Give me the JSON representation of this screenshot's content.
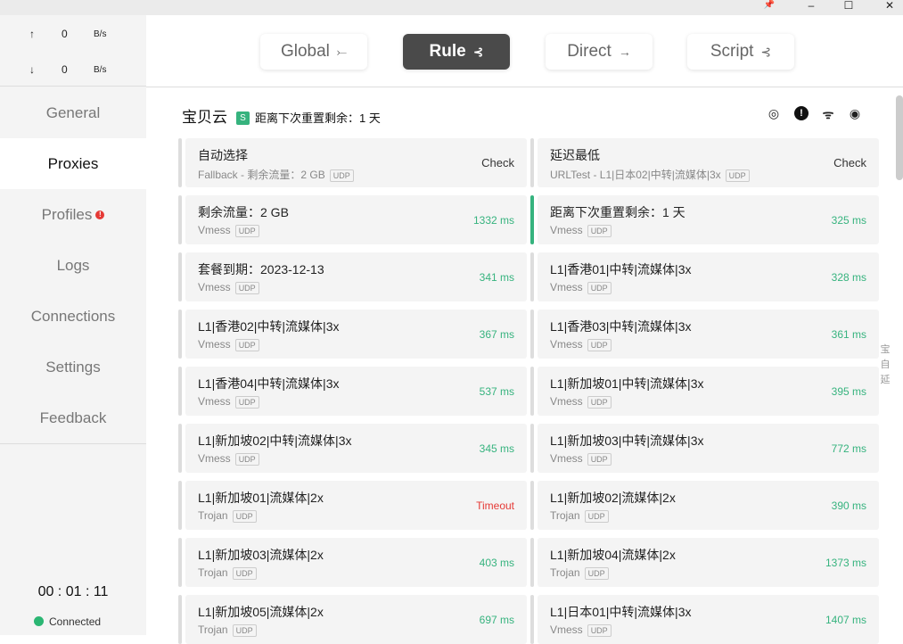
{
  "window": {
    "pin": "📌",
    "minimize": "–",
    "maximize": "☐",
    "close": "✕"
  },
  "traffic": {
    "up_arrow": "↑",
    "up_value": "0",
    "up_unit": "B/s",
    "down_arrow": "↓",
    "down_value": "0",
    "down_unit": "B/s"
  },
  "nav": [
    {
      "label": "General"
    },
    {
      "label": "Proxies",
      "active": true
    },
    {
      "label": "Profiles",
      "alert": "!"
    },
    {
      "label": "Logs"
    },
    {
      "label": "Connections"
    },
    {
      "label": "Settings"
    },
    {
      "label": "Feedback"
    }
  ],
  "timer": "00 : 01 : 11",
  "status": "Connected",
  "colors": {
    "accent": "#36b37e",
    "error": "#e53935",
    "selected_mode": "#4a4a4a"
  },
  "modes": [
    {
      "label": "Global",
      "icon": "⤚"
    },
    {
      "label": "Rule",
      "icon": "⊰",
      "selected": true
    },
    {
      "label": "Direct",
      "icon": "→"
    },
    {
      "label": "Script",
      "icon": "⊰"
    }
  ],
  "group": {
    "name": "宝贝云",
    "badge": "S",
    "subtitle": "距离下次重置剩余：1 天",
    "icons": [
      "locate-icon",
      "alert-icon",
      "latency-test-icon",
      "eye-icon"
    ]
  },
  "proxies": [
    {
      "name": "自动选择",
      "type": "Fallback - 剩余流量：2 GB",
      "udp": "UDP",
      "latency": "Check",
      "kind": "check"
    },
    {
      "name": "延迟最低",
      "type": "URLTest - L1|日本02|中转|流媒体|3x",
      "udp": "UDP",
      "latency": "Check",
      "kind": "check"
    },
    {
      "name": "剩余流量：2 GB",
      "type": "Vmess",
      "udp": "UDP",
      "latency": "1332 ms"
    },
    {
      "name": "距离下次重置剩余：1 天",
      "type": "Vmess",
      "udp": "UDP",
      "latency": "325 ms",
      "selected": true
    },
    {
      "name": "套餐到期：2023-12-13",
      "type": "Vmess",
      "udp": "UDP",
      "latency": "341 ms"
    },
    {
      "name": "L1|香港01|中转|流媒体|3x",
      "type": "Vmess",
      "udp": "UDP",
      "latency": "328 ms"
    },
    {
      "name": "L1|香港02|中转|流媒体|3x",
      "type": "Vmess",
      "udp": "UDP",
      "latency": "367 ms"
    },
    {
      "name": "L1|香港03|中转|流媒体|3x",
      "type": "Vmess",
      "udp": "UDP",
      "latency": "361 ms"
    },
    {
      "name": "L1|香港04|中转|流媒体|3x",
      "type": "Vmess",
      "udp": "UDP",
      "latency": "537 ms"
    },
    {
      "name": "L1|新加坡01|中转|流媒体|3x",
      "type": "Vmess",
      "udp": "UDP",
      "latency": "395 ms"
    },
    {
      "name": "L1|新加坡02|中转|流媒体|3x",
      "type": "Vmess",
      "udp": "UDP",
      "latency": "345 ms"
    },
    {
      "name": "L1|新加坡03|中转|流媒体|3x",
      "type": "Vmess",
      "udp": "UDP",
      "latency": "772 ms"
    },
    {
      "name": "L1|新加坡01|流媒体|2x",
      "type": "Trojan",
      "udp": "UDP",
      "latency": "Timeout",
      "kind": "timeout"
    },
    {
      "name": "L1|新加坡02|流媒体|2x",
      "type": "Trojan",
      "udp": "UDP",
      "latency": "390 ms"
    },
    {
      "name": "L1|新加坡03|流媒体|2x",
      "type": "Trojan",
      "udp": "UDP",
      "latency": "403 ms"
    },
    {
      "name": "L1|新加坡04|流媒体|2x",
      "type": "Trojan",
      "udp": "UDP",
      "latency": "1373 ms"
    },
    {
      "name": "L1|新加坡05|流媒体|2x",
      "type": "Trojan",
      "udp": "UDP",
      "latency": "697 ms"
    },
    {
      "name": "L1|日本01|中转|流媒体|3x",
      "type": "Vmess",
      "udp": "UDP",
      "latency": "1407 ms"
    }
  ],
  "index": [
    "宝",
    "自",
    "延"
  ]
}
